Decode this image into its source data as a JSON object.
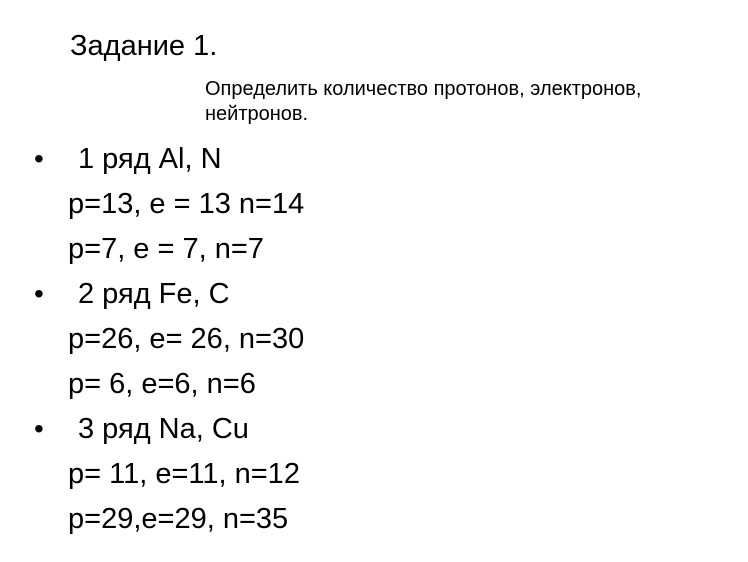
{
  "title": "Задание 1.",
  "subtitle_line1": "Определить количество протонов, электронов,",
  "subtitle_line2": "нейтронов.",
  "lines": [
    {
      "text": "1 ряд Al, N",
      "bullet": true
    },
    {
      "text": "р=13, e = 13 n=14",
      "bullet": false
    },
    {
      "text": "р=7, e = 7, n=7",
      "bullet": false
    },
    {
      "text": "2 ряд Fe, C",
      "bullet": true
    },
    {
      "text": "р=26, e= 26, n=30",
      "bullet": false
    },
    {
      "text": "р= 6, e=6, n=6",
      "bullet": false
    },
    {
      "text": "3 ряд Na, Cu",
      "bullet": true
    },
    {
      "text": "р= 11, e=11, n=12",
      "bullet": false
    },
    {
      "text": "р=29,e=29, n=35",
      "bullet": false
    }
  ],
  "colors": {
    "text": "#000000",
    "background": "#ffffff"
  },
  "typography": {
    "title_fontsize": 29,
    "subtitle_fontsize": 20,
    "body_fontsize": 29,
    "font_family": "Arial"
  }
}
